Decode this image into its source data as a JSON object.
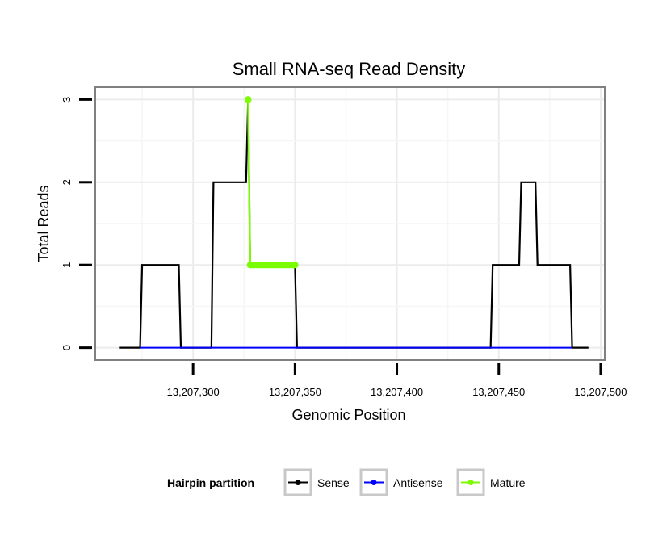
{
  "chart_data": {
    "type": "line",
    "title": "Small RNA-seq Read Density",
    "xlabel": "Genomic Position",
    "ylabel": "Total Reads",
    "xlim": [
      13207252,
      13207502
    ],
    "ylim": [
      -0.15,
      3.15
    ],
    "x_ticks": [
      13207300,
      13207350,
      13207400,
      13207450,
      13207500
    ],
    "x_tick_labels": [
      "13,207,300",
      "13,207,350",
      "13,207,400",
      "13,207,450",
      "13,207,500"
    ],
    "y_ticks": [
      0,
      1,
      2,
      3
    ],
    "y_tick_labels": [
      "0",
      "1",
      "2",
      "3"
    ],
    "grid": true,
    "legend": {
      "title": "Hairpin partition",
      "position": "bottom",
      "entries": [
        "Sense",
        "Antisense",
        "Mature"
      ]
    },
    "series": [
      {
        "name": "Sense",
        "color": "#000000",
        "points": [
          [
            13207264,
            0
          ],
          [
            13207274,
            0
          ],
          [
            13207275,
            1
          ],
          [
            13207293,
            1
          ],
          [
            13207294,
            0
          ],
          [
            13207309,
            0
          ],
          [
            13207310,
            2
          ],
          [
            13207326,
            2
          ],
          [
            13207327,
            3
          ],
          [
            13207328,
            1
          ],
          [
            13207350,
            1
          ],
          [
            13207351,
            0
          ],
          [
            13207446,
            0
          ],
          [
            13207447,
            1
          ],
          [
            13207460,
            1
          ],
          [
            13207461,
            2
          ],
          [
            13207468,
            2
          ],
          [
            13207469,
            1
          ],
          [
            13207485,
            1
          ],
          [
            13207486,
            0
          ],
          [
            13207494,
            0
          ]
        ]
      },
      {
        "name": "Antisense",
        "color": "#0000ff",
        "points": [
          [
            13207274,
            0
          ],
          [
            13207294,
            0
          ],
          [
            13207309,
            0
          ],
          [
            13207351,
            0
          ],
          [
            13207446,
            0
          ],
          [
            13207486,
            0
          ]
        ]
      },
      {
        "name": "Mature",
        "color": "#7cfc00",
        "points": [
          [
            13207327,
            3
          ],
          [
            13207328,
            1
          ],
          [
            13207329,
            1
          ],
          [
            13207330,
            1
          ],
          [
            13207331,
            1
          ],
          [
            13207332,
            1
          ],
          [
            13207333,
            1
          ],
          [
            13207334,
            1
          ],
          [
            13207335,
            1
          ],
          [
            13207336,
            1
          ],
          [
            13207337,
            1
          ],
          [
            13207338,
            1
          ],
          [
            13207339,
            1
          ],
          [
            13207340,
            1
          ],
          [
            13207341,
            1
          ],
          [
            13207342,
            1
          ],
          [
            13207343,
            1
          ],
          [
            13207344,
            1
          ],
          [
            13207345,
            1
          ],
          [
            13207346,
            1
          ],
          [
            13207347,
            1
          ],
          [
            13207348,
            1
          ],
          [
            13207349,
            1
          ],
          [
            13207350,
            1
          ]
        ]
      }
    ]
  }
}
